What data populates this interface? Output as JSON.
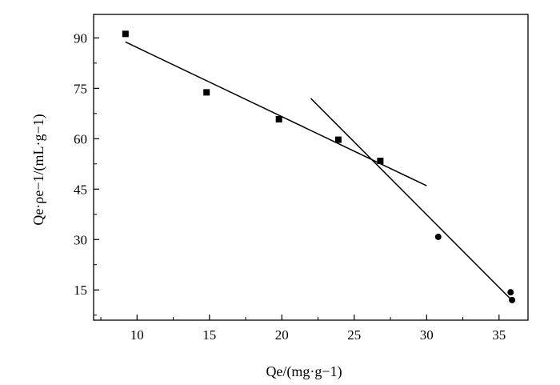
{
  "chart_data": {
    "type": "scatter",
    "xlabel": "Qe/(mg·g−1)",
    "ylabel": "Qe·ρe−1/(mL·g−1)",
    "xlim": [
      7,
      37
    ],
    "ylim": [
      6,
      97
    ],
    "x_ticks": [
      10,
      15,
      20,
      25,
      30,
      35
    ],
    "y_ticks": [
      15,
      30,
      45,
      60,
      75,
      90
    ],
    "x_tick_labels": [
      "10",
      "15",
      "20",
      "25",
      "30",
      "35"
    ],
    "y_tick_labels": [
      "15",
      "30",
      "45",
      "60",
      "75",
      "90"
    ],
    "grid": false,
    "series": [
      {
        "marker": "square",
        "points": [
          {
            "x": 9.2,
            "y": 91.2
          },
          {
            "x": 14.8,
            "y": 73.8
          },
          {
            "x": 19.8,
            "y": 65.8
          },
          {
            "x": 23.9,
            "y": 59.7
          },
          {
            "x": 26.8,
            "y": 53.4
          }
        ]
      },
      {
        "marker": "circle",
        "points": [
          {
            "x": 30.8,
            "y": 30.8
          },
          {
            "x": 35.8,
            "y": 14.3
          },
          {
            "x": 35.9,
            "y": 12.0
          }
        ]
      }
    ],
    "fit_lines": [
      {
        "x": [
          9.2,
          30.0
        ],
        "y": [
          88.8,
          46.0
        ]
      },
      {
        "x": [
          22.0,
          35.8
        ],
        "y": [
          72.0,
          12.3
        ]
      }
    ]
  }
}
